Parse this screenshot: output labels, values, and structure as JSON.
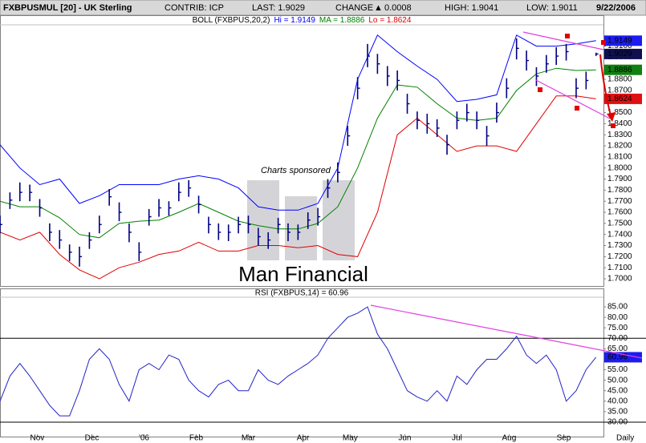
{
  "header": {
    "symbol": "FXBPUSMUL [20] - UK Sterling",
    "contrib": "CONTRIB: ICP",
    "last": "LAST: 1.9029",
    "change": "CHANGE",
    "change_value": "0.0008",
    "high": "HIGH: 1.9041",
    "low": "LOW: 1.9011",
    "date": "9/22/2006"
  },
  "watermark": {
    "sponsor": "Charts sponsored",
    "brand": "Man Financial"
  },
  "period": "Daily",
  "chart_data": [
    {
      "type": "ohlc",
      "indicator": "BOLL (FXBPUS,20,2)",
      "color": "#000080",
      "xlim": [
        0,
        243
      ],
      "ylim": [
        1.6935,
        1.9285
      ],
      "x": [
        0,
        4,
        8,
        12,
        16,
        20,
        24,
        28,
        32,
        36,
        40,
        44,
        48,
        52,
        56,
        60,
        64,
        68,
        72,
        76,
        80,
        84,
        88,
        92,
        96,
        100,
        104,
        108,
        112,
        116,
        120,
        124,
        128,
        132,
        136,
        140,
        144,
        148,
        152,
        156,
        160,
        164,
        168,
        172,
        176,
        180,
        184,
        188,
        192,
        196,
        200,
        204,
        208,
        212,
        216,
        220,
        224,
        228,
        232,
        236,
        240
      ],
      "high": [
        1.757,
        1.778,
        1.787,
        1.785,
        1.772,
        1.75,
        1.744,
        1.731,
        1.729,
        1.742,
        1.757,
        1.781,
        1.769,
        1.75,
        1.733,
        1.763,
        1.772,
        1.77,
        1.787,
        1.789,
        1.775,
        1.756,
        1.75,
        1.749,
        1.756,
        1.757,
        1.746,
        1.742,
        1.755,
        1.75,
        1.749,
        1.76,
        1.764,
        1.79,
        1.805,
        1.838,
        1.882,
        1.912,
        1.903,
        1.892,
        1.888,
        1.867,
        1.851,
        1.849,
        1.844,
        1.83,
        1.851,
        1.858,
        1.851,
        1.838,
        1.859,
        1.881,
        1.917,
        1.906,
        1.891,
        1.902,
        1.909,
        1.912,
        1.881,
        1.887,
        1.9041
      ],
      "low": [
        1.741,
        1.763,
        1.77,
        1.77,
        1.756,
        1.734,
        1.727,
        1.716,
        1.711,
        1.727,
        1.741,
        1.766,
        1.752,
        1.733,
        1.716,
        1.748,
        1.756,
        1.757,
        1.77,
        1.774,
        1.759,
        1.741,
        1.735,
        1.734,
        1.741,
        1.741,
        1.73,
        1.727,
        1.741,
        1.734,
        1.735,
        1.745,
        1.748,
        1.773,
        1.787,
        1.82,
        1.862,
        1.891,
        1.885,
        1.874,
        1.87,
        1.849,
        1.835,
        1.831,
        1.828,
        1.812,
        1.835,
        1.842,
        1.835,
        1.82,
        1.841,
        1.863,
        1.898,
        1.888,
        1.874,
        1.886,
        1.893,
        1.897,
        1.863,
        1.871,
        1.9011
      ],
      "close": [
        1.749,
        1.771,
        1.778,
        1.778,
        1.764,
        1.742,
        1.735,
        1.724,
        1.72,
        1.735,
        1.749,
        1.774,
        1.76,
        1.742,
        1.724,
        1.756,
        1.764,
        1.764,
        1.778,
        1.782,
        1.767,
        1.749,
        1.742,
        1.742,
        1.749,
        1.749,
        1.738,
        1.735,
        1.749,
        1.742,
        1.742,
        1.753,
        1.756,
        1.782,
        1.796,
        1.829,
        1.872,
        1.901,
        1.894,
        1.883,
        1.879,
        1.858,
        1.843,
        1.84,
        1.836,
        1.821,
        1.843,
        1.85,
        1.843,
        1.829,
        1.85,
        1.872,
        1.908,
        1.897,
        1.883,
        1.894,
        1.901,
        1.905,
        1.872,
        1.879,
        1.9029
      ],
      "bands": {
        "x": [
          0,
          8,
          16,
          24,
          32,
          40,
          48,
          56,
          64,
          72,
          80,
          88,
          96,
          104,
          112,
          120,
          128,
          136,
          144,
          152,
          160,
          168,
          176,
          184,
          192,
          200,
          208,
          216,
          224,
          232,
          240
        ],
        "series": [
          {
            "name": "Hi = 1.9149",
            "color": "#0000ff",
            "values": [
              1.821,
              1.8,
              1.785,
              1.79,
              1.768,
              1.775,
              1.785,
              1.785,
              1.785,
              1.79,
              1.793,
              1.79,
              1.782,
              1.765,
              1.762,
              1.762,
              1.768,
              1.8,
              1.88,
              1.92,
              1.905,
              1.892,
              1.88,
              1.86,
              1.862,
              1.866,
              1.92,
              1.91,
              1.91,
              1.912,
              1.9149
            ]
          },
          {
            "name": "MA = 1.8886",
            "color": "#008000",
            "values": [
              1.77,
              1.765,
              1.765,
              1.755,
              1.74,
              1.737,
              1.75,
              1.752,
              1.753,
              1.76,
              1.768,
              1.76,
              1.752,
              1.748,
              1.745,
              1.745,
              1.75,
              1.765,
              1.8,
              1.845,
              1.875,
              1.873,
              1.858,
              1.845,
              1.843,
              1.845,
              1.87,
              1.885,
              1.89,
              1.888,
              1.8886
            ]
          },
          {
            "name": "Lo = 1.8624",
            "color": "#e00000",
            "values": [
              1.742,
              1.735,
              1.742,
              1.722,
              1.708,
              1.7,
              1.71,
              1.715,
              1.722,
              1.725,
              1.733,
              1.725,
              1.725,
              1.73,
              1.73,
              1.728,
              1.73,
              1.722,
              1.72,
              1.76,
              1.83,
              1.845,
              1.83,
              1.815,
              1.82,
              1.82,
              1.815,
              1.84,
              1.865,
              1.865,
              1.8624
            ]
          }
        ]
      },
      "yticks": [
        {
          "value": 1.7,
          "label": "1.7000"
        },
        {
          "value": 1.71,
          "label": "1.7100"
        },
        {
          "value": 1.72,
          "label": "1.7200"
        },
        {
          "value": 1.73,
          "label": "1.7300"
        },
        {
          "value": 1.74,
          "label": "1.7400"
        },
        {
          "value": 1.75,
          "label": "1.7500"
        },
        {
          "value": 1.76,
          "label": "1.7600"
        },
        {
          "value": 1.77,
          "label": "1.7700"
        },
        {
          "value": 1.78,
          "label": "1.7800"
        },
        {
          "value": 1.79,
          "label": "1.7900"
        },
        {
          "value": 1.8,
          "label": "1.8000"
        },
        {
          "value": 1.81,
          "label": "1.8100"
        },
        {
          "value": 1.82,
          "label": "1.8200"
        },
        {
          "value": 1.83,
          "label": "1.8300"
        },
        {
          "value": 1.84,
          "label": "1.8400"
        },
        {
          "value": 1.85,
          "label": "1.8500"
        },
        {
          "value": 1.86,
          "label": "1.8600"
        },
        {
          "value": 1.87,
          "label": "1.8700"
        },
        {
          "value": 1.88,
          "label": "1.8800"
        },
        {
          "value": 1.89,
          "label": "1.8900"
        },
        {
          "value": 1.9,
          "label": "1.9000"
        },
        {
          "value": 1.91,
          "label": "1.9100"
        }
      ],
      "value_boxes": [
        {
          "value": 1.9149,
          "label": "1.9149",
          "color": "#1c1cf0"
        },
        {
          "value": 1.9029,
          "label": "1.9029",
          "color": "#101050"
        },
        {
          "value": 1.8886,
          "label": "1.8886",
          "color": "#108010"
        },
        {
          "value": 1.8624,
          "label": "1.8624",
          "color": "#e01010"
        }
      ]
    },
    {
      "type": "line",
      "title": "RSI (FXBPUS,14) = 60.96",
      "xlim": [
        0,
        243
      ],
      "ylim": [
        23.1,
        91.9
      ],
      "x": [
        0,
        4,
        8,
        12,
        16,
        20,
        24,
        28,
        32,
        36,
        40,
        44,
        48,
        52,
        56,
        60,
        64,
        68,
        72,
        76,
        80,
        84,
        88,
        92,
        96,
        100,
        104,
        108,
        112,
        116,
        120,
        124,
        128,
        132,
        136,
        140,
        144,
        148,
        152,
        156,
        160,
        164,
        168,
        172,
        176,
        180,
        184,
        188,
        192,
        196,
        200,
        204,
        208,
        212,
        216,
        220,
        224,
        228,
        232,
        236,
        240
      ],
      "series": [
        {
          "color": "#2323c8",
          "values": [
            40,
            52,
            58,
            52,
            45,
            38,
            33,
            33,
            45,
            60,
            65,
            60,
            48,
            40,
            55,
            58,
            55,
            62,
            60,
            50,
            45,
            42,
            48,
            50,
            45,
            45,
            55,
            50,
            48,
            52,
            55,
            58,
            62,
            70,
            75,
            80,
            82,
            85,
            72,
            65,
            55,
            45,
            42,
            40,
            45,
            40,
            52,
            48,
            55,
            60,
            60,
            65,
            71,
            62,
            58,
            62,
            55,
            40,
            45,
            55,
            60.96
          ]
        }
      ],
      "yticks": [
        {
          "value": 30,
          "label": "30.00"
        },
        {
          "value": 35,
          "label": "35.00"
        },
        {
          "value": 40,
          "label": "40.00"
        },
        {
          "value": 45,
          "label": "45.00"
        },
        {
          "value": 50,
          "label": "50.00"
        },
        {
          "value": 55,
          "label": "55.00"
        },
        {
          "value": 60,
          "label": "60.00"
        },
        {
          "value": 65,
          "label": "65.00"
        },
        {
          "value": 70,
          "label": "70.00"
        },
        {
          "value": 75,
          "label": "75.00"
        },
        {
          "value": 80,
          "label": "80.00"
        },
        {
          "value": 85,
          "label": "85.00"
        }
      ],
      "reference_lines": [
        70,
        30
      ],
      "xticks": [
        {
          "value": 15,
          "label": "Nov"
        },
        {
          "value": 37,
          "label": "Dec"
        },
        {
          "value": 58,
          "label": "'06"
        },
        {
          "value": 79,
          "label": "Feb"
        },
        {
          "value": 100,
          "label": "Mar"
        },
        {
          "value": 122,
          "label": "Apr"
        },
        {
          "value": 141,
          "label": "May"
        },
        {
          "value": 163,
          "label": "Jun"
        },
        {
          "value": 184,
          "label": "Jul"
        },
        {
          "value": 205,
          "label": "Aug"
        },
        {
          "value": 227,
          "label": "Sep"
        }
      ],
      "value_boxes": [
        {
          "value": 60.96,
          "label": "60.96",
          "color": "#1c1cf0"
        }
      ]
    }
  ]
}
